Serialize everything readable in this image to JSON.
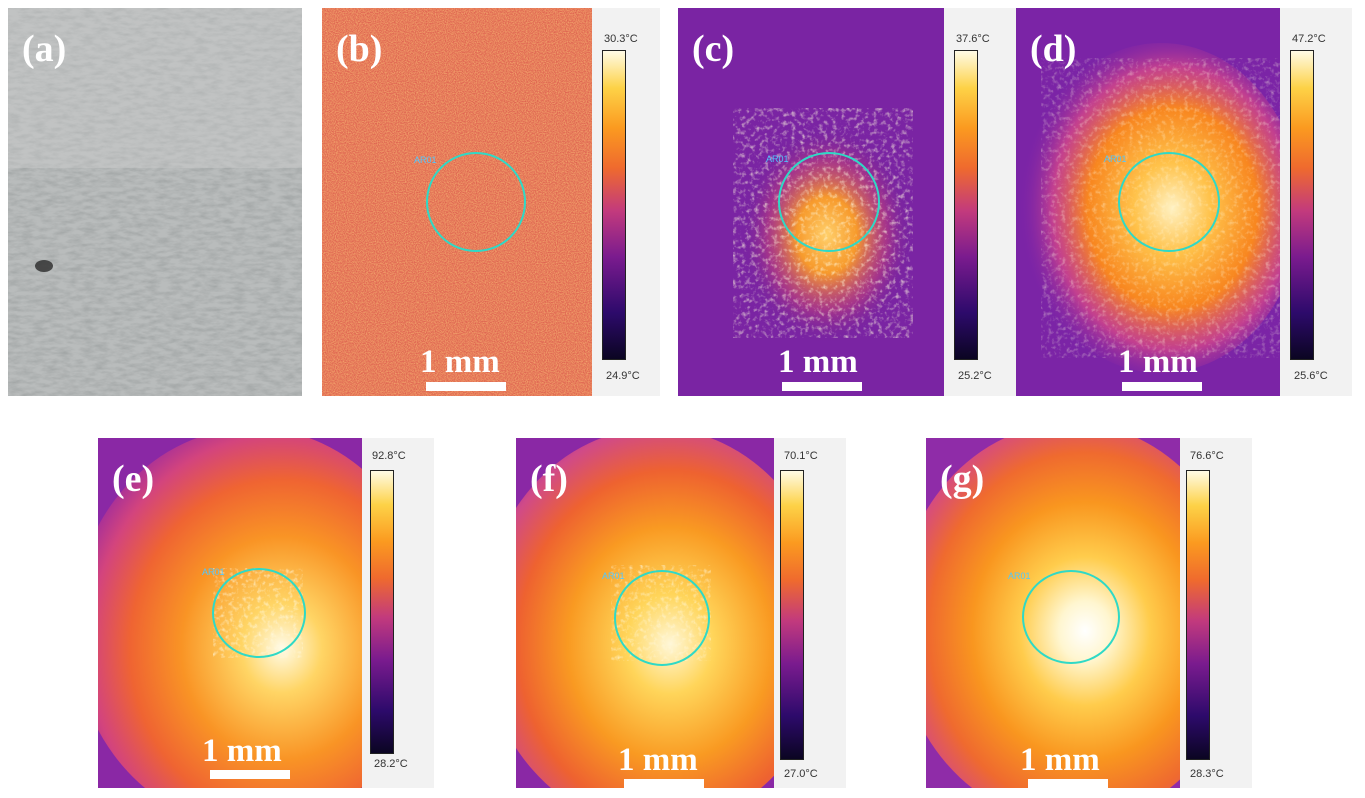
{
  "panels": {
    "a": {
      "label": "(a)"
    },
    "b": {
      "label": "(b)",
      "scale": "1 mm",
      "roi": "AR01",
      "cbar_max": "30.3°C",
      "cbar_min": "24.9°C"
    },
    "c": {
      "label": "(c)",
      "scale": "1 mm",
      "roi": "AR01",
      "cbar_max": "37.6°C",
      "cbar_min": "25.2°C"
    },
    "d": {
      "label": "(d)",
      "scale": "1 mm",
      "roi": "AR01",
      "cbar_max": "47.2°C",
      "cbar_min": "25.6°C"
    },
    "e": {
      "label": "(e)",
      "scale": "1 mm",
      "roi": "AR01",
      "cbar_max": "92.8°C",
      "cbar_min": "28.2°C"
    },
    "f": {
      "label": "(f)",
      "scale": "1 mm",
      "roi": "AR01",
      "cbar_max": "70.1°C",
      "cbar_min": "27.0°C"
    },
    "g": {
      "label": "(g)",
      "scale": "1 mm",
      "roi": "AR01",
      "cbar_max": "76.6°C",
      "cbar_min": "28.3°C"
    }
  },
  "colors": {
    "roi_circle": "#2fd9c6",
    "roi_text": "#50c8ff",
    "colormap": [
      "#0b0522",
      "#2d0a6b",
      "#7a1b8e",
      "#c23a7d",
      "#ef6a2e",
      "#fb9a20",
      "#fdd247",
      "#fffbe6"
    ]
  }
}
